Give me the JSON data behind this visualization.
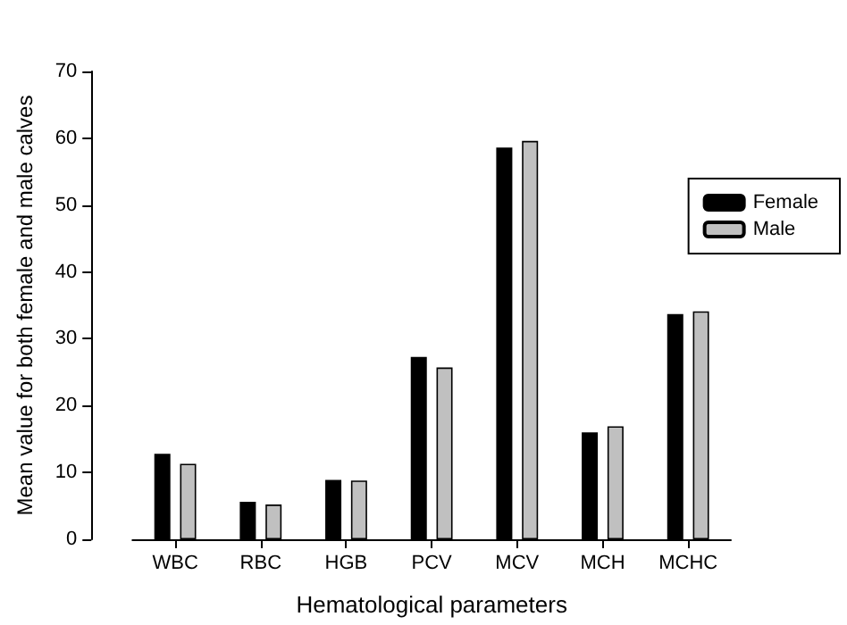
{
  "chart_data": {
    "type": "bar",
    "xlabel": "Hematological parameters",
    "ylabel": "Mean value for both female and male calves",
    "categories": [
      "WBC",
      "RBC",
      "HGB",
      "PCV",
      "MCV",
      "MCH",
      "MCHC"
    ],
    "series": [
      {
        "name": "Female",
        "color": "#000000",
        "values": [
          12.8,
          5.6,
          8.9,
          27.3,
          58.6,
          16.0,
          33.7
        ]
      },
      {
        "name": "Male",
        "color": "#c0c0c0",
        "values": [
          11.3,
          5.2,
          8.8,
          25.7,
          59.6,
          16.9,
          34.1
        ]
      }
    ],
    "ylim": [
      0,
      70
    ],
    "yticks": [
      0,
      10,
      20,
      30,
      40,
      50,
      60,
      70
    ],
    "grid": false,
    "legend": "right"
  }
}
